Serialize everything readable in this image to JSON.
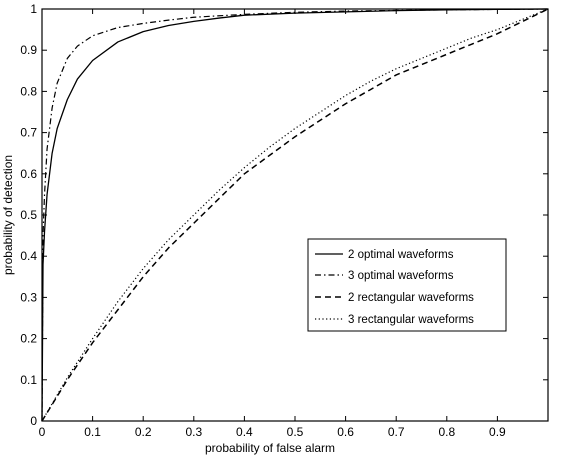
{
  "chart_data": {
    "type": "line",
    "xlabel": "probability of false alarm",
    "ylabel": "probability of detection",
    "xlim": [
      0,
      1
    ],
    "ylim": [
      0,
      1
    ],
    "xticks": [
      0,
      0.1,
      0.2,
      0.3,
      0.4,
      0.5,
      0.6,
      0.7,
      0.8,
      0.9
    ],
    "yticks": [
      0,
      0.1,
      0.2,
      0.3,
      0.4,
      0.5,
      0.6,
      0.7,
      0.8,
      0.9,
      1
    ],
    "grid": false,
    "legend_position": "center-right",
    "series": [
      {
        "name": "2 optimal waveforms",
        "style": "solid",
        "x": [
          0,
          0.002,
          0.005,
          0.01,
          0.02,
          0.03,
          0.05,
          0.07,
          0.1,
          0.15,
          0.2,
          0.25,
          0.3,
          0.35,
          0.4,
          0.5,
          0.6,
          0.7,
          0.8,
          0.9,
          1.0
        ],
        "y": [
          0,
          0.38,
          0.46,
          0.55,
          0.65,
          0.71,
          0.78,
          0.83,
          0.875,
          0.92,
          0.945,
          0.96,
          0.97,
          0.978,
          0.985,
          0.99,
          0.993,
          0.996,
          0.998,
          0.999,
          1.0
        ]
      },
      {
        "name": "3 optimal waveforms",
        "style": "dashdot",
        "x": [
          0,
          0.002,
          0.005,
          0.01,
          0.02,
          0.03,
          0.05,
          0.07,
          0.1,
          0.15,
          0.2,
          0.25,
          0.3,
          0.4,
          0.5,
          0.6,
          0.8,
          1.0
        ],
        "y": [
          0,
          0.45,
          0.55,
          0.66,
          0.76,
          0.82,
          0.88,
          0.91,
          0.935,
          0.955,
          0.965,
          0.973,
          0.98,
          0.987,
          0.992,
          0.995,
          0.998,
          1.0
        ]
      },
      {
        "name": "2 rectangular waveforms",
        "style": "dashed",
        "x": [
          0,
          0.05,
          0.1,
          0.15,
          0.2,
          0.25,
          0.3,
          0.35,
          0.4,
          0.45,
          0.5,
          0.55,
          0.6,
          0.65,
          0.7,
          0.75,
          0.8,
          0.85,
          0.9,
          0.95,
          1.0
        ],
        "y": [
          0,
          0.1,
          0.19,
          0.27,
          0.35,
          0.42,
          0.48,
          0.54,
          0.6,
          0.645,
          0.69,
          0.73,
          0.77,
          0.805,
          0.84,
          0.865,
          0.89,
          0.915,
          0.94,
          0.97,
          1.0
        ]
      },
      {
        "name": "3 rectangular waveforms",
        "style": "dotted",
        "x": [
          0,
          0.05,
          0.1,
          0.15,
          0.2,
          0.25,
          0.3,
          0.35,
          0.4,
          0.45,
          0.5,
          0.55,
          0.6,
          0.65,
          0.7,
          0.75,
          0.8,
          0.85,
          0.9,
          0.95,
          1.0
        ],
        "y": [
          0,
          0.105,
          0.2,
          0.29,
          0.37,
          0.44,
          0.5,
          0.56,
          0.615,
          0.665,
          0.71,
          0.75,
          0.79,
          0.825,
          0.855,
          0.88,
          0.905,
          0.93,
          0.95,
          0.975,
          1.0
        ]
      }
    ]
  }
}
